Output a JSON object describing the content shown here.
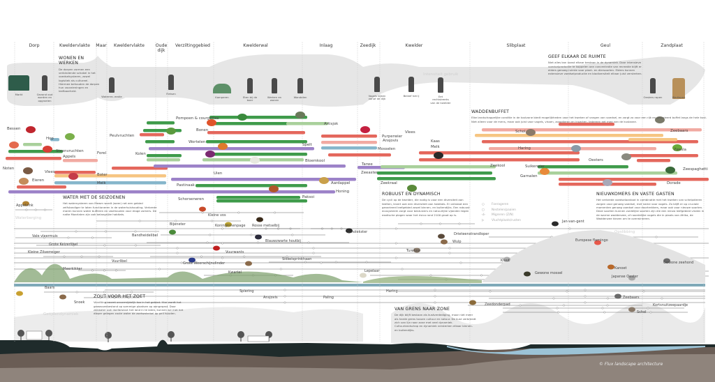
{
  "zones": [
    {
      "label": "Dorp"
    },
    {
      "label": "Kweldervlakte"
    },
    {
      "label": "Maar"
    },
    {
      "label": "Kweldervlakte"
    },
    {
      "label": "Oude dijk"
    },
    {
      "label": "Verziltinggebied"
    },
    {
      "label": "Kwelderwal"
    },
    {
      "label": "Inlaag"
    },
    {
      "label": "Zeedijk"
    },
    {
      "label": "Kwelder"
    },
    {
      "label": "Slibplaat"
    },
    {
      "label": "Geul"
    },
    {
      "label": "Zandplaat"
    }
  ],
  "activities": {
    "band_label": "Intensiteit gebruik",
    "items": [
      {
        "label": "Markt"
      },
      {
        "label": "Gezond oud worden en opgroeien"
      },
      {
        "label": "Waterrec-reatie"
      },
      {
        "label": "Fietsen"
      },
      {
        "label": "Kamperen"
      },
      {
        "label": "Eten bij de boer"
      },
      {
        "label": "Werken en wonen"
      },
      {
        "label": "Wandelen"
      },
      {
        "label": "Vogels kijken vanaf de dijk"
      },
      {
        "label": "Beleef het Ij"
      },
      {
        "label": "Eet rechtstreeks van de kwelder"
      },
      {
        "label": "Oesters rapen"
      },
      {
        "label": "Wadlopen"
      }
    ]
  },
  "text_blocks": [
    {
      "title": "WONEN EN WERKEN",
      "body": "De dorpen vormen een verbindende schakel in het voedselsysteem, zowel logistiek als cultureel. Hiermee behouden de dorpen hun voorzieningen en leefbaarheid."
    },
    {
      "title": "GEEF ELKAAR DE RUIMTE",
      "body": "Niet alles kan naast elkaar bestaan in de dynamiek. Door intensieve voedselproductie te koppelen aan concentratie van recreatie blijft er elders genoeg ruimte voor plant- en diersoorten. Elders kunnen extensieve voedselproductie en biodiversiteit elkaar juist versterken."
    },
    {
      "title": "WADDENBUFFET",
      "body": "Elke landschappelijke conditie in de kustzone biedt mogelijkheden voor het kweken of vangen van voedsel, en zorgt zo voor een rijk en gevarieerd buffet langs de hele kust. Niet alleen voor de mens, maar ook juist voor vogels, vissen, zoogdieren en insecten. Iedereen eet mee van de kustzone."
    },
    {
      "title": "WATER MET DE SEIZOENEN",
      "body": "Het watersysteem van Mewm wordt (weer) net een gebied zelfstandiger te laten functioneren in de waterhuishouding. Verbrede maren kunnen water bufferen en vasthouden voor droge zomers. De natte Maarlaten zijn ook belangrijke habitats."
    },
    {
      "title": "ROBUUST EN DYNAMISCH",
      "body": "De cycli op de kwelder, die nodig is voor een diversiteit aan teelten, levert ook een diversiteit aan habitats. Er ontstaat een gevarieerd leefgebied zowel binnen- en buitendijks. Een robuust ecosysteem zorgt voor bestuivers en natuurlijke vijanden tegen exotische plagen waar het risico rond 2100 groot op is."
    },
    {
      "title": "NIEUWKOMERS EN VASTE GASTEN",
      "body": "Het verbrede voedselaanbod in combinatie met het kweken van schelpdieren zorgen voor genoeg voedsel, met name voor vogels. Zo blijft er op cruciale momenten genoeg voedsel voor doortrekkers, maar ook voor nieuwe soorten. Deze soorten kunnen zuidelijke soorten zijn die een nieuw leefgebied vinden in de warme waddenzee, of noordelijke vogels die in plaats van Afrika, de Waddenzee kiezen om te overwinteren."
    },
    {
      "title": "ZOUT VOOR HET ZOET",
      "body": "Verzilting neemt onvermijdelijk toe in het gebied. Hier wordt het gewassenbestand op sommige plaatsen op aangepast. Door zeewater ook doelbewust het land in te laten, kunnen we met het dieper gelegen zoute water de zoetwaterbel op peil houden."
    },
    {
      "title": "VAN GRENS NAAR ZONE",
      "body": "De dijk blijft bestaan als kustverdediging, maar niet meer als harde grens tussen cultuur en natuur. De kust verbreedt zich van lijn naar zone met veel dynamiek. Cultuurlandschap en dynamiek versterken elkaar binnen- en buitendijks."
    }
  ],
  "food": {
    "colors": {
      "green": "#3f9b4b",
      "lightgreen": "#a9d09b",
      "red": "#e4675c",
      "pink": "#f1aaa2",
      "purple": "#9c82c8",
      "blue": "#86b6cb",
      "peach": "#f6c582"
    },
    "labels": [
      "Bessen",
      "Hop",
      "Steenvruchten",
      "Appels",
      "Forel",
      "Noten",
      "Vlees",
      "Boter",
      "Melk",
      "Eieren",
      "Peulvruchten",
      "Kolen",
      "Pompoen & courgettes",
      "Bonen",
      "Wortelen",
      "Spelt",
      "Artisjok",
      "Bloemkool",
      "Uien",
      "Aardappel",
      "Pastinaak",
      "Honing",
      "Schorseneren",
      "Paksoi",
      "Vlees",
      "Kaas",
      "Melk",
      "Tarwe",
      "Zeeaster",
      "Purperwier",
      "Ansjovis",
      "Schol",
      "Mosselen",
      "Haring",
      "Oesters",
      "Zeekool",
      "Zeekraal",
      "Suikerwier",
      "Garnalen",
      "Zeebaars",
      "Zeesla",
      "Zeespaghetti",
      "Dorade"
    ]
  },
  "wildlife": {
    "labels": [
      "Appelvink",
      "Vale vleermuis",
      "Grote Keizerlibel",
      "Kleine Zilverreiger",
      "Meerkikker",
      "Vuurlibel",
      "Bijeneter",
      "Kleine vos",
      "Koninginnenpage",
      "Rosse metselbij",
      "Bandheidelibel",
      "Blauwzwarte houtbij",
      "Vuurwants",
      "Grote Weerschijnvlinder",
      "Sikkelsprinkhaan",
      "Kwartel",
      "Scholekster",
      "Jan-van-gent",
      "Drieteenstrandloper",
      "Wulp",
      "Tureluur",
      "Kluut",
      "Europese flamingo",
      "Lepelaar",
      "Gewone mossel",
      "Kanoet",
      "Japanse Oester",
      "Gewone zeehond",
      "Baars",
      "Snoek",
      "Spiering",
      "Ansjovis",
      "Paling",
      "Haring",
      "Zeebaars",
      "Zeedonderpad",
      "Kortsnuitzeepaardje",
      "Schol"
    ],
    "legend": [
      {
        "glyph": "○",
        "label": "Foerageren"
      },
      {
        "glyph": "◻",
        "label": "Nestelen/paaien"
      },
      {
        "glyph": "‹/›",
        "label": "Migreren (Z/N)"
      },
      {
        "glyph": "▷",
        "label": "Vluchtplaats/rusten"
      }
    ],
    "faint_labels": [
      "Waterberging",
      "Opslibbing",
      "Getijdendynamiek"
    ]
  },
  "credit": "© Flux landscape architecture"
}
